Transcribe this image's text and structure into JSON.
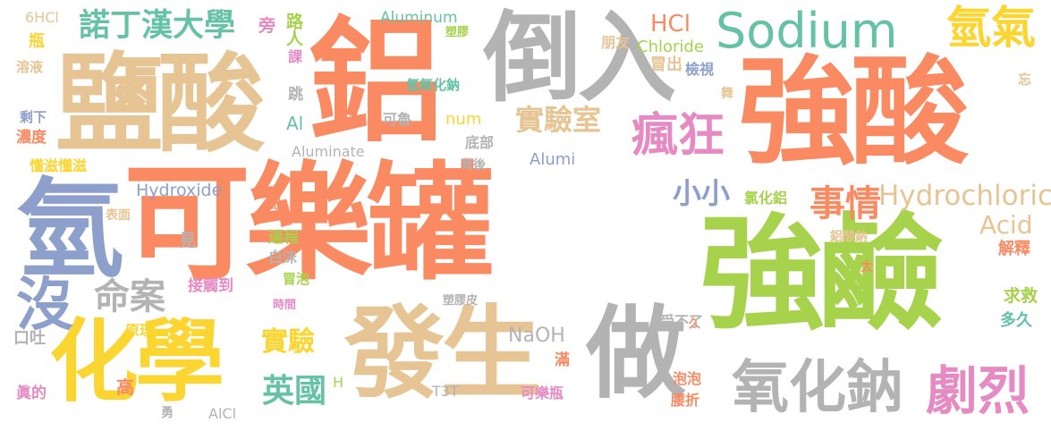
{
  "colors": {
    "coral": "#f98a62",
    "green": "#a6d24c",
    "grey": "#b3b3b3",
    "tan": "#e6c493",
    "yellow": "#fbd531",
    "blue": "#8da0cb",
    "pink": "#e68ac3",
    "teal": "#66c2a5"
  },
  "words": [
    {
      "id": "kele-guan",
      "text": "可樂罐",
      "color": "#f98a62"
    },
    {
      "id": "qiang-suan",
      "text": "強酸",
      "color": "#f98a62"
    },
    {
      "id": "qiang-jian",
      "text": "強鹼",
      "color": "#a6d24c"
    },
    {
      "id": "lv",
      "text": "鋁",
      "color": "#f98a62"
    },
    {
      "id": "yan-suan",
      "text": "鹽酸",
      "color": "#e6c493"
    },
    {
      "id": "dao-ru",
      "text": "倒入",
      "color": "#b3b3b3"
    },
    {
      "id": "qing",
      "text": "氫",
      "color": "#8da0cb"
    },
    {
      "id": "hua-xue",
      "text": "化學",
      "color": "#fbd531"
    },
    {
      "id": "fa-sheng",
      "text": "發生",
      "color": "#e6c493"
    },
    {
      "id": "zuo",
      "text": "做",
      "color": "#b3b3b3"
    },
    {
      "id": "sodium",
      "text": "Sodium",
      "color": "#66c2a5"
    },
    {
      "id": "qing-qi",
      "text": "氫氣",
      "color": "#fbd531"
    },
    {
      "id": "qing-hua-na",
      "text": "氧化鈉",
      "color": "#b3b3b3"
    },
    {
      "id": "ju-lie",
      "text": "劇烈",
      "color": "#e68ac3"
    },
    {
      "id": "feng-kuang",
      "text": "瘋狂",
      "color": "#e68ac3"
    },
    {
      "id": "nottingham",
      "text": "諾丁漢大學",
      "color": "#66c2a5"
    },
    {
      "id": "ming-an",
      "text": "命案",
      "color": "#b3b3b3"
    },
    {
      "id": "mei",
      "text": "沒",
      "color": "#8da0cb"
    },
    {
      "id": "shi-yan-shi",
      "text": "實驗室",
      "color": "#e6c493"
    },
    {
      "id": "hydrochloric",
      "text": "Hydrochloric",
      "color": "#e6c493"
    },
    {
      "id": "acid",
      "text": "Acid",
      "color": "#e6c493"
    },
    {
      "id": "shi-qing",
      "text": "事情",
      "color": "#f98a62"
    },
    {
      "id": "xiao-xiao",
      "text": "小小",
      "color": "#8da0cb"
    },
    {
      "id": "shi-yan",
      "text": "實驗",
      "color": "#fbd531"
    },
    {
      "id": "ying-guo",
      "text": "英國",
      "color": "#66c2a5"
    },
    {
      "id": "hcl",
      "text": "HCl",
      "color": "#f98a62"
    },
    {
      "id": "chloride",
      "text": "Chloride",
      "color": "#a6d24c"
    },
    {
      "id": "aluminum",
      "text": "Aluminum",
      "color": "#66c2a5"
    },
    {
      "id": "hydroxide",
      "text": "Hydroxide",
      "color": "#8da0cb"
    },
    {
      "id": "aluminate",
      "text": "Aluminate",
      "color": "#b3b3b3"
    },
    {
      "id": "naoh",
      "text": "NaOH",
      "color": "#b3b3b3"
    },
    {
      "id": "t3t",
      "text": "T3T",
      "color": "#b3b3b3"
    },
    {
      "id": "alcl",
      "text": "AlCl",
      "color": "#b3b3b3"
    },
    {
      "id": "num",
      "text": "num",
      "color": "#fbd531"
    },
    {
      "id": "alumi",
      "text": "Alumi",
      "color": "#8da0cb"
    },
    {
      "id": "al",
      "text": "Al",
      "color": "#66c2a5"
    },
    {
      "id": "h",
      "text": "H",
      "color": "#a6d24c"
    },
    {
      "id": "6hcl",
      "text": "6HCl",
      "color": "#e6c493"
    },
    {
      "id": "ping",
      "text": "瓶",
      "color": "#fbd531"
    },
    {
      "id": "rong-ye",
      "text": "溶液",
      "color": "#e6c493"
    },
    {
      "id": "sheng-xia",
      "text": "剩下",
      "color": "#8da0cb"
    },
    {
      "id": "nong-du",
      "text": "濃度",
      "color": "#f98a62"
    },
    {
      "id": "dong-zi",
      "text": "懂滋懂滋",
      "color": "#fbd531"
    },
    {
      "id": "biao-mian",
      "text": "表面",
      "color": "#e6c493"
    },
    {
      "id": "kou-tu",
      "text": "口吐",
      "color": "#b3b3b3"
    },
    {
      "id": "zhen-de",
      "text": "眞的",
      "color": "#e68ac3"
    },
    {
      "id": "gao",
      "text": "高",
      "color": "#f98a62"
    },
    {
      "id": "yuan-li",
      "text": "原理",
      "color": "#fbd531"
    },
    {
      "id": "jie-chu",
      "text": "接觸到",
      "color": "#e68ac3"
    },
    {
      "id": "jian",
      "text": "見",
      "color": "#b3b3b3"
    },
    {
      "id": "yong",
      "text": "勇",
      "color": "#b3b3b3"
    },
    {
      "id": "pang",
      "text": "旁",
      "color": "#e68ac3"
    },
    {
      "id": "lu-ren",
      "text": "路人",
      "color": "#a6d24c"
    },
    {
      "id": "ke",
      "text": "課",
      "color": "#e68ac3"
    },
    {
      "id": "tiao",
      "text": "跳",
      "color": "#b3b3b3"
    },
    {
      "id": "ji",
      "text": "記",
      "color": "#f98a62"
    },
    {
      "id": "guo-cheng",
      "text": "過程",
      "color": "#a6d24c"
    },
    {
      "id": "bai-mo",
      "text": "白沫",
      "color": "#b3b3b3"
    },
    {
      "id": "mao-pao",
      "text": "冒泡",
      "color": "#a6d24c"
    },
    {
      "id": "shi-jian",
      "text": "時間",
      "color": "#e68ac3"
    },
    {
      "id": "su-jiao",
      "text": "塑膠",
      "color": "#a6d24c"
    },
    {
      "id": "qing-yang-hua-na",
      "text": "氫氧化鈉",
      "color": "#66c2a5"
    },
    {
      "id": "ke-lu",
      "text": "可魯",
      "color": "#b3b3b3"
    },
    {
      "id": "di-bu",
      "text": "底部",
      "color": "#b3b3b3"
    },
    {
      "id": "bei-hou",
      "text": "背後",
      "color": "#b3b3b3"
    },
    {
      "id": "su-jiao-pi",
      "text": "塑膠皮",
      "color": "#b3b3b3"
    },
    {
      "id": "peng-you",
      "text": "朋友",
      "color": "#e6c493"
    },
    {
      "id": "mao-chu",
      "text": "冒出",
      "color": "#e6c493"
    },
    {
      "id": "jian-shi",
      "text": "檢視",
      "color": "#8da0cb"
    },
    {
      "id": "wu",
      "text": "舞",
      "color": "#e6c493"
    },
    {
      "id": "wang",
      "text": "忘",
      "color": "#e6c493"
    },
    {
      "id": "lv-hua-lv",
      "text": "氯化鋁",
      "color": "#a6d24c"
    },
    {
      "id": "lv-suan-na",
      "text": "鋁酸鈉",
      "color": "#e6c493"
    },
    {
      "id": "jie-shi",
      "text": "解釋",
      "color": "#f98a62"
    },
    {
      "id": "tai",
      "text": "太",
      "color": "#f98a62"
    },
    {
      "id": "qiu-jiu",
      "text": "求救",
      "color": "#a6d24c"
    },
    {
      "id": "duo-jiu",
      "text": "多久",
      "color": "#66c2a5"
    },
    {
      "id": "jiu",
      "text": "久",
      "color": "#f98a62"
    },
    {
      "id": "shou-bu-liao",
      "text": "受不了",
      "color": "#b3b3b3"
    },
    {
      "id": "man",
      "text": "滿",
      "color": "#f98a62"
    },
    {
      "id": "pao-pao",
      "text": "泡泡",
      "color": "#f98a62"
    },
    {
      "id": "yao-zhe",
      "text": "腰折",
      "color": "#f98a62"
    },
    {
      "id": "kele-ping",
      "text": "可樂瓶",
      "color": "#e68ac3"
    }
  ]
}
